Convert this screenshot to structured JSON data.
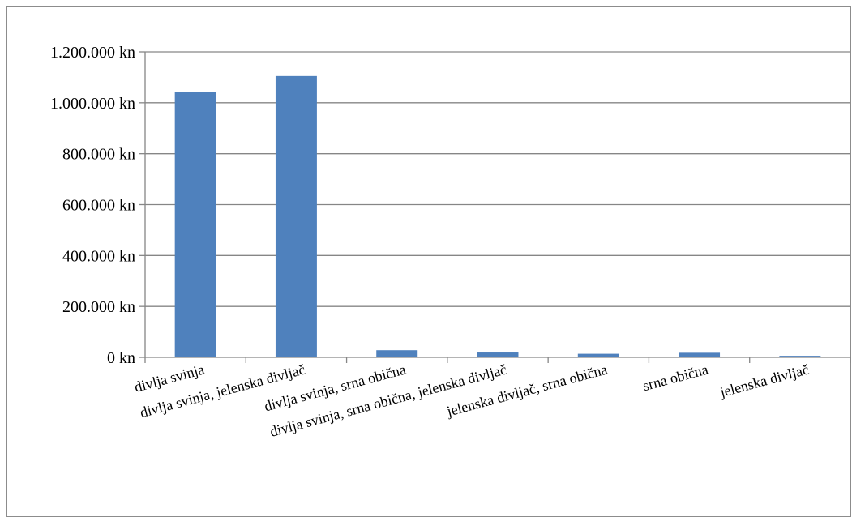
{
  "colors": {
    "bar": "#4f81bd",
    "grid": "#868686",
    "axis": "#868686",
    "frame": "#8c8c8c"
  },
  "chart_data": {
    "type": "bar",
    "title": "",
    "xlabel": "",
    "ylabel": "",
    "categories": [
      "divlja svinja",
      "divlja svinja, jelenska divljač",
      "divlja svinja, srna obična",
      "divlja svinja, srna obična, jelenska divljač",
      "jelenska divljač, srna obična",
      "srna obična",
      "jelenska divljač"
    ],
    "values": [
      1042000,
      1105000,
      28000,
      19000,
      14000,
      18000,
      6000
    ],
    "ylim": [
      0,
      1200000
    ],
    "yticks": [
      0,
      200000,
      400000,
      600000,
      800000,
      1000000,
      1200000
    ],
    "ytick_labels": [
      "0 kn",
      "200.000 kn",
      "400.000 kn",
      "600.000 kn",
      "800.000 kn",
      "1.000.000 kn",
      "1.200.000 kn"
    ],
    "grid": true,
    "legend": "none"
  }
}
